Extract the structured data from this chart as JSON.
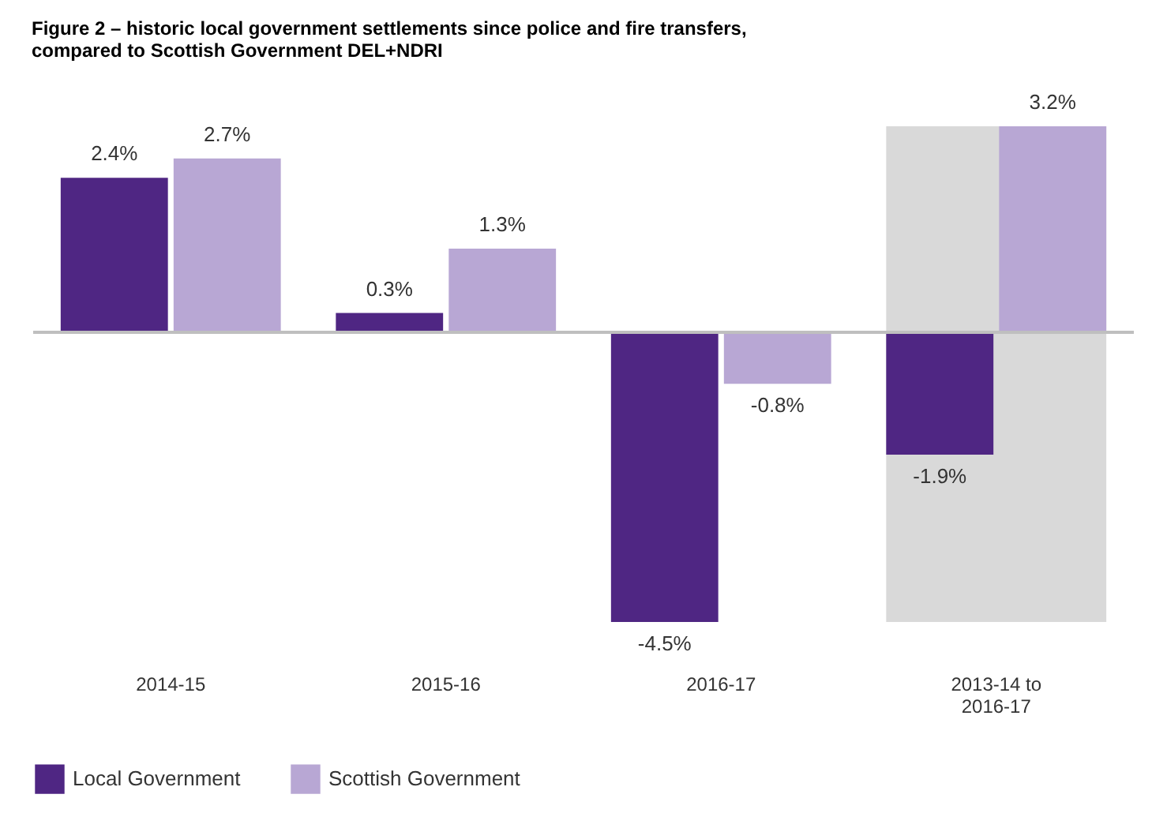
{
  "chart_data": {
    "type": "bar",
    "title": "Figure 2 – historic local government settlements since police and fire transfers,\ncompared to Scottish Government DEL+NDRI",
    "categories": [
      "2014-15",
      "2015-16",
      "2016-17",
      "2013-14 to\n2016-17"
    ],
    "series": [
      {
        "name": "Local Government",
        "color": "#4f2683",
        "values": [
          2.4,
          0.3,
          -4.5,
          -1.9
        ],
        "value_labels": [
          "2.4%",
          "0.3%",
          "-4.5%",
          "-1.9%"
        ]
      },
      {
        "name": "Scottish Government",
        "color": "#b8a7d4",
        "values": [
          2.7,
          1.3,
          -0.8,
          3.2
        ],
        "value_labels": [
          "2.7%",
          "1.3%",
          "-0.8%",
          "3.2%"
        ]
      }
    ],
    "bands": [
      {
        "axis": "x",
        "from": "2013-14 to\n2016-17",
        "to": "2013-14 to\n2016-17",
        "color": "#d9d9d9"
      }
    ],
    "legend": "bottom"
  }
}
